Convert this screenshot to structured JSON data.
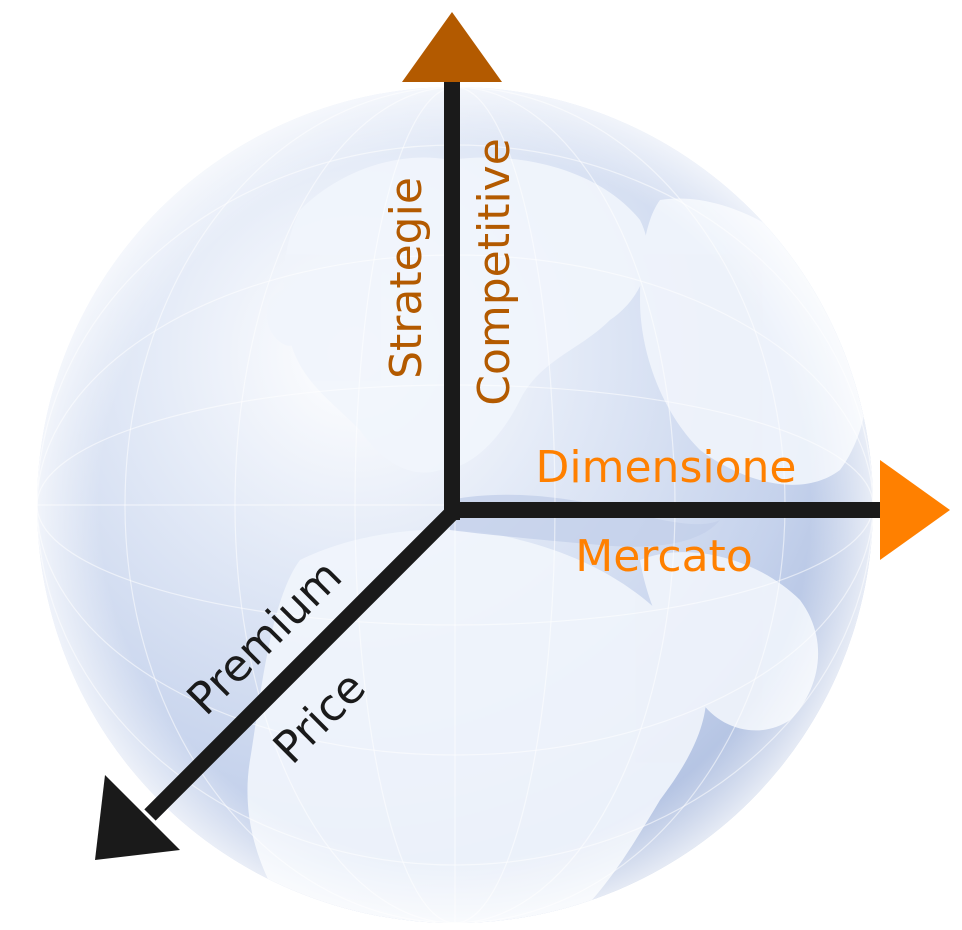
{
  "diagram": {
    "vertical_axis": {
      "label_line1": "Strategie",
      "label_line2": "Competitive",
      "color": "#B35A00"
    },
    "horizontal_axis": {
      "label_line1": "Dimensione",
      "label_line2": "Mercato",
      "color": "#FF8000"
    },
    "diagonal_axis": {
      "label_line1": "Premium",
      "label_line2": "Price",
      "color": "#1A1A1A"
    },
    "background": {
      "globe_icon": "globe-icon",
      "ocean_color": "#C9D6EE",
      "land_color": "#EEF3FB"
    }
  }
}
